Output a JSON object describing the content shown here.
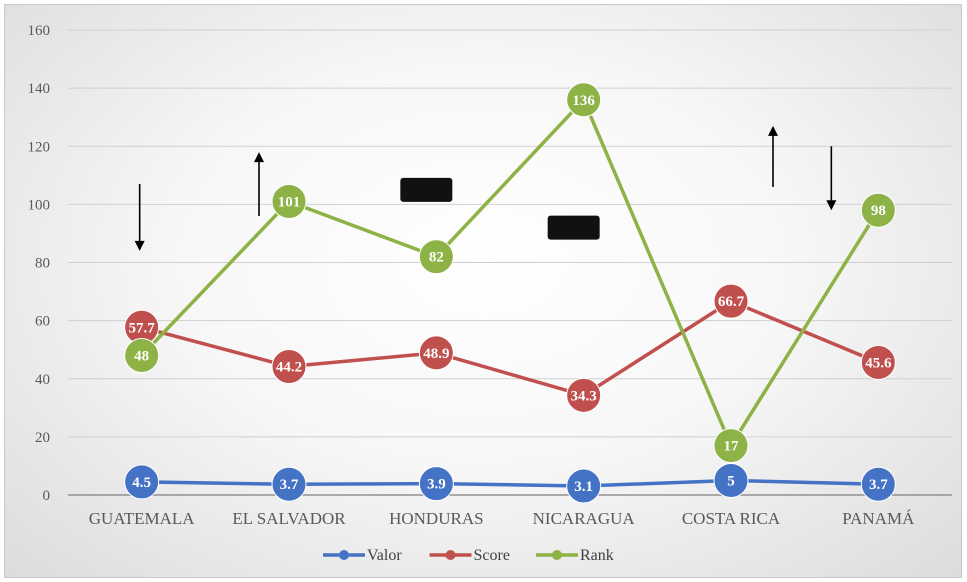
{
  "chart_data": {
    "type": "line",
    "categories": [
      "GUATEMALA",
      "EL SALVADOR",
      "HONDURAS",
      "NICARAGUA",
      "COSTA RICA",
      "PANAMÁ"
    ],
    "ylim": [
      0,
      160
    ],
    "yticks": [
      0,
      20,
      40,
      60,
      80,
      100,
      120,
      140,
      160
    ],
    "grid": true,
    "legend_position": "bottom",
    "series": [
      {
        "name": "Valor",
        "color": "#4472c4",
        "values": [
          4.5,
          3.7,
          3.9,
          3.1,
          5,
          3.7
        ]
      },
      {
        "name": "Score",
        "color": "#c0504d",
        "values": [
          57.7,
          44.2,
          48.9,
          34.3,
          66.7,
          45.6
        ]
      },
      {
        "name": "Rank",
        "color": "#8db245",
        "values": [
          48,
          101,
          82,
          136,
          17,
          98
        ]
      }
    ],
    "annotations": [
      {
        "type": "arrow-down",
        "category": "GUATEMALA",
        "y_from": 107,
        "y_to": 84
      },
      {
        "type": "arrow-up",
        "category": "EL SALVADOR",
        "y_from": 96,
        "y_to": 118
      },
      {
        "type": "block",
        "category": "HONDURAS",
        "y": 105
      },
      {
        "type": "block",
        "category": "NICARAGUA",
        "y": 92
      },
      {
        "type": "arrow-up",
        "category": "COSTA RICA",
        "y_from": 106,
        "y_to": 127
      },
      {
        "type": "arrow-down",
        "category": "PANAMÁ",
        "y_from": 120,
        "y_to": 98
      }
    ]
  }
}
